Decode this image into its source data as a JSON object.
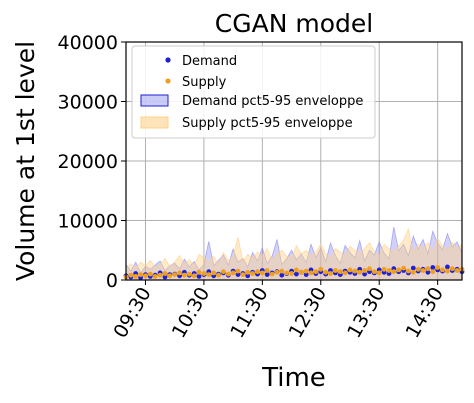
{
  "chart_data": {
    "type": "scatter",
    "title": "CGAN model",
    "xlabel": "Time",
    "ylabel": "Volume at 1st level",
    "ylim": [
      0,
      40000
    ],
    "yticks": [
      0,
      10000,
      20000,
      30000,
      40000
    ],
    "xlim": [
      "09:10",
      "14:55"
    ],
    "xticks": [
      "09:30",
      "10:30",
      "11:30",
      "12:30",
      "13:30",
      "14:30"
    ],
    "grid": true,
    "legend_position": "upper-left",
    "colors": {
      "demand": "#1f1fd6",
      "supply": "#f0a020",
      "demand_band": "#8c8cf0",
      "supply_band": "#ffd08a"
    },
    "series": [
      {
        "name": "Demand",
        "kind": "scatter",
        "x": [
          "09:10",
          "09:15",
          "09:20",
          "09:25",
          "09:30",
          "09:35",
          "09:40",
          "09:45",
          "09:50",
          "09:55",
          "10:00",
          "10:05",
          "10:10",
          "10:15",
          "10:20",
          "10:25",
          "10:30",
          "10:35",
          "10:40",
          "10:45",
          "10:50",
          "10:55",
          "11:00",
          "11:05",
          "11:10",
          "11:15",
          "11:20",
          "11:25",
          "11:30",
          "11:35",
          "11:40",
          "11:45",
          "11:50",
          "11:55",
          "12:00",
          "12:05",
          "12:10",
          "12:15",
          "12:20",
          "12:25",
          "12:30",
          "12:35",
          "12:40",
          "12:45",
          "12:50",
          "12:55",
          "13:00",
          "13:05",
          "13:10",
          "13:15",
          "13:20",
          "13:25",
          "13:30",
          "13:35",
          "13:40",
          "13:45",
          "13:50",
          "13:55",
          "14:00",
          "14:05",
          "14:10",
          "14:15",
          "14:20",
          "14:25",
          "14:30",
          "14:35",
          "14:40",
          "14:45",
          "14:50",
          "14:55"
        ],
        "y": [
          700,
          500,
          1100,
          400,
          900,
          600,
          800,
          1200,
          500,
          900,
          1000,
          700,
          1300,
          800,
          1100,
          600,
          900,
          1400,
          700,
          1000,
          1200,
          800,
          1500,
          900,
          1100,
          700,
          1300,
          1000,
          1600,
          900,
          1200,
          1400,
          800,
          1100,
          1500,
          1000,
          1300,
          900,
          1700,
          1100,
          1400,
          1000,
          1600,
          1200,
          900,
          1500,
          1300,
          1100,
          1800,
          1000,
          1400,
          1200,
          1700,
          1300,
          1100,
          1900,
          1400,
          1600,
          1200,
          2000,
          1500,
          1800,
          1300,
          2100,
          1700,
          1500,
          2200,
          1600,
          1800,
          1400
        ]
      },
      {
        "name": "Supply",
        "kind": "scatter",
        "x": [
          "09:10",
          "09:15",
          "09:20",
          "09:25",
          "09:30",
          "09:35",
          "09:40",
          "09:45",
          "09:50",
          "09:55",
          "10:00",
          "10:05",
          "10:10",
          "10:15",
          "10:20",
          "10:25",
          "10:30",
          "10:35",
          "10:40",
          "10:45",
          "10:50",
          "10:55",
          "11:00",
          "11:05",
          "11:10",
          "11:15",
          "11:20",
          "11:25",
          "11:30",
          "11:35",
          "11:40",
          "11:45",
          "11:50",
          "11:55",
          "12:00",
          "12:05",
          "12:10",
          "12:15",
          "12:20",
          "12:25",
          "12:30",
          "12:35",
          "12:40",
          "12:45",
          "12:50",
          "12:55",
          "13:00",
          "13:05",
          "13:10",
          "13:15",
          "13:20",
          "13:25",
          "13:30",
          "13:35",
          "13:40",
          "13:45",
          "13:50",
          "13:55",
          "14:00",
          "14:05",
          "14:10",
          "14:15",
          "14:20",
          "14:25",
          "14:30",
          "14:35",
          "14:40",
          "14:45",
          "14:50",
          "14:55"
        ],
        "y": [
          500,
          800,
          600,
          900,
          700,
          1000,
          600,
          800,
          1100,
          700,
          900,
          1200,
          800,
          1000,
          700,
          1300,
          1100,
          900,
          1200,
          800,
          1400,
          1000,
          1200,
          1500,
          900,
          1300,
          1100,
          1400,
          1200,
          1600,
          1000,
          1300,
          1500,
          1200,
          1100,
          1700,
          1300,
          1500,
          1200,
          1400,
          1800,
          1300,
          1100,
          1600,
          1400,
          1200,
          1700,
          1500,
          1300,
          1600,
          1900,
          1400,
          1200,
          1800,
          1600,
          1400,
          1700,
          2000,
          1500,
          1300,
          1800,
          1600,
          1900,
          1400,
          2100,
          1700,
          1500,
          1900,
          1600,
          1800
        ]
      },
      {
        "name": "Demand pct5-95 enveloppe",
        "kind": "band",
        "x": [
          "09:10",
          "09:15",
          "09:20",
          "09:25",
          "09:30",
          "09:35",
          "09:40",
          "09:45",
          "09:50",
          "09:55",
          "10:00",
          "10:05",
          "10:10",
          "10:15",
          "10:20",
          "10:25",
          "10:30",
          "10:35",
          "10:40",
          "10:45",
          "10:50",
          "10:55",
          "11:00",
          "11:05",
          "11:10",
          "11:15",
          "11:20",
          "11:25",
          "11:30",
          "11:35",
          "11:40",
          "11:45",
          "11:50",
          "11:55",
          "12:00",
          "12:05",
          "12:10",
          "12:15",
          "12:20",
          "12:25",
          "12:30",
          "12:35",
          "12:40",
          "12:45",
          "12:50",
          "12:55",
          "13:00",
          "13:05",
          "13:10",
          "13:15",
          "13:20",
          "13:25",
          "13:30",
          "13:35",
          "13:40",
          "13:45",
          "13:50",
          "13:55",
          "14:00",
          "14:05",
          "14:10",
          "14:15",
          "14:20",
          "14:25",
          "14:30",
          "14:35",
          "14:40",
          "14:45",
          "14:50",
          "14:55"
        ],
        "low": [
          0,
          0,
          0,
          0,
          0,
          0,
          0,
          0,
          0,
          0,
          0,
          0,
          0,
          0,
          0,
          0,
          0,
          0,
          0,
          0,
          0,
          0,
          0,
          0,
          0,
          0,
          0,
          0,
          0,
          0,
          0,
          0,
          0,
          0,
          0,
          0,
          0,
          0,
          0,
          0,
          0,
          0,
          0,
          0,
          0,
          0,
          0,
          0,
          0,
          0,
          0,
          0,
          0,
          0,
          0,
          0,
          0,
          0,
          0,
          0,
          0,
          0,
          0,
          0,
          0,
          0,
          0,
          0,
          0,
          0
        ],
        "high": [
          2600,
          1500,
          3000,
          1200,
          2300,
          1800,
          2500,
          3200,
          1600,
          2400,
          2800,
          1900,
          3500,
          2200,
          3100,
          1700,
          2600,
          6500,
          2400,
          3300,
          4200,
          2500,
          5200,
          3000,
          3600,
          2200,
          4600,
          3200,
          5400,
          2800,
          4000,
          6800,
          2600,
          3600,
          5000,
          3400,
          4400,
          2900,
          6000,
          3800,
          5400,
          3100,
          6200,
          4100,
          2800,
          5800,
          4600,
          3700,
          6600,
          3200,
          5000,
          4200,
          6400,
          4500,
          3600,
          8900,
          4900,
          6000,
          4100,
          7400,
          5200,
          6800,
          4400,
          8200,
          6200,
          5100,
          7800,
          5600,
          6400,
          4600
        ]
      },
      {
        "name": "Supply pct5-95 enveloppe",
        "kind": "band",
        "x": [
          "09:10",
          "09:15",
          "09:20",
          "09:25",
          "09:30",
          "09:35",
          "09:40",
          "09:45",
          "09:50",
          "09:55",
          "10:00",
          "10:05",
          "10:10",
          "10:15",
          "10:20",
          "10:25",
          "10:30",
          "10:35",
          "10:40",
          "10:45",
          "10:50",
          "10:55",
          "11:00",
          "11:05",
          "11:10",
          "11:15",
          "11:20",
          "11:25",
          "11:30",
          "11:35",
          "11:40",
          "11:45",
          "11:50",
          "11:55",
          "12:00",
          "12:05",
          "12:10",
          "12:15",
          "12:20",
          "12:25",
          "12:30",
          "12:35",
          "12:40",
          "12:45",
          "12:50",
          "12:55",
          "13:00",
          "13:05",
          "13:10",
          "13:15",
          "13:20",
          "13:25",
          "13:30",
          "13:35",
          "13:40",
          "13:45",
          "13:50",
          "13:55",
          "14:00",
          "14:05",
          "14:10",
          "14:15",
          "14:20",
          "14:25",
          "14:30",
          "14:35",
          "14:40",
          "14:45",
          "14:50",
          "14:55"
        ],
        "low": [
          0,
          0,
          0,
          0,
          0,
          0,
          0,
          0,
          0,
          0,
          0,
          0,
          0,
          0,
          0,
          0,
          0,
          0,
          0,
          0,
          0,
          0,
          0,
          0,
          0,
          0,
          0,
          0,
          0,
          0,
          0,
          0,
          0,
          0,
          0,
          0,
          0,
          0,
          0,
          0,
          0,
          0,
          0,
          0,
          0,
          0,
          0,
          0,
          0,
          0,
          0,
          0,
          0,
          0,
          0,
          0,
          0,
          0,
          0,
          0,
          0,
          0,
          0,
          0,
          0,
          0,
          0,
          0,
          0,
          0
        ],
        "high": [
          1800,
          2700,
          2000,
          3000,
          2400,
          3300,
          2100,
          2600,
          3600,
          2300,
          3000,
          4100,
          2700,
          3400,
          2400,
          4300,
          3800,
          3000,
          4000,
          2700,
          4600,
          3300,
          4000,
          7200,
          3000,
          4300,
          3700,
          4700,
          4000,
          5300,
          3300,
          4400,
          5000,
          4000,
          3700,
          5800,
          4400,
          5000,
          4000,
          4700,
          6000,
          4400,
          3700,
          5300,
          4700,
          4000,
          5700,
          5000,
          4400,
          5300,
          6300,
          4700,
          4000,
          6000,
          5300,
          4700,
          5700,
          6700,
          8600,
          4400,
          6000,
          5300,
          6300,
          4700,
          7000,
          5700,
          5000,
          6300,
          5300,
          6000
        ]
      }
    ]
  }
}
